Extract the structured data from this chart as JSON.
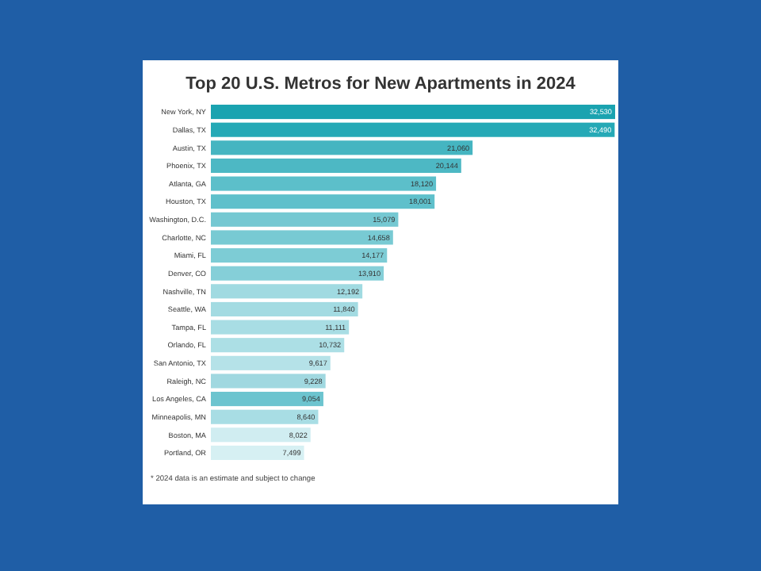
{
  "chart_data": {
    "type": "bar",
    "orientation": "horizontal",
    "title": "Top 20 U.S. Metros for New Apartments in 2024",
    "categories": [
      "New York, NY",
      "Dallas, TX",
      "Austin, TX",
      "Phoenix, TX",
      "Atlanta, GA",
      "Houston, TX",
      "Washington, D.C.",
      "Charlotte, NC",
      "Miami, FL",
      "Denver, CO",
      "Nashville, TN",
      "Seattle, WA",
      "Tampa, FL",
      "Orlando, FL",
      "San Antonio, TX",
      "Raleigh, NC",
      "Los Angeles, CA",
      "Minneapolis, MN",
      "Boston, MA",
      "Portland, OR"
    ],
    "values": [
      32530,
      32490,
      21060,
      20144,
      18120,
      18001,
      15079,
      14658,
      14177,
      13910,
      12192,
      11840,
      11111,
      10732,
      9617,
      9228,
      9054,
      8640,
      8022,
      7499
    ],
    "colors": [
      "#1aa3b0",
      "#25a9b6",
      "#45b5c1",
      "#4db8c4",
      "#5cbfca",
      "#5fc0cb",
      "#75c8d2",
      "#78cad3",
      "#7dccd5",
      "#85cfd8",
      "#a0dae1",
      "#a3dbe2",
      "#a8dde4",
      "#acdfe5",
      "#b5e2e8",
      "#a0d8e0",
      "#6cc4cf",
      "#a8dde4",
      "#d0edf1",
      "#d6f0f3"
    ],
    "value_labels": [
      "32,530",
      "32,490",
      "21,060",
      "20,144",
      "18,120",
      "18,001",
      "15,079",
      "14,658",
      "14,177",
      "13,910",
      "12,192",
      "11,840",
      "11,111",
      "10,732",
      "9,617",
      "9,228",
      "9,054",
      "8,640",
      "8,022",
      "7,499"
    ],
    "annotations": [
      "* 2024 data is an estimate and subject to change"
    ]
  }
}
